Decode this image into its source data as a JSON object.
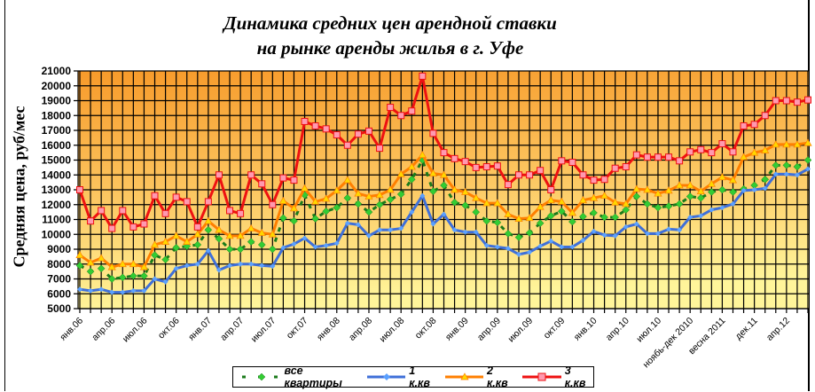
{
  "chart_data": {
    "type": "line",
    "title": [
      "Динамика средних цен арендной ставки",
      "на рынке аренды жилья в г. Уфе"
    ],
    "ylabel": "Средняя цена, руб/мес",
    "xlabel": "",
    "ylim": [
      5000,
      21000
    ],
    "ytick_step": 1000,
    "grid": true,
    "legend_position": "bottom",
    "categories": [
      "янв.06",
      "",
      "",
      "апр.06",
      "",
      "",
      "июл.06",
      "",
      "",
      "окт.06",
      "",
      "",
      "янв.07",
      "",
      "",
      "апр.07",
      "",
      "",
      "июл.07",
      "",
      "",
      "окт.07",
      "",
      "",
      "янв.08",
      "",
      "",
      "апр.08",
      "",
      "",
      "июл.08",
      "",
      "",
      "окт.08",
      "",
      "",
      "янв.09",
      "",
      "",
      "апр.09",
      "",
      "",
      "июл.09",
      "",
      "",
      "окт.09",
      "",
      "",
      "янв.10",
      "",
      "",
      "апр.10",
      "",
      "",
      "июл.10",
      "",
      "",
      "ноябь-дек 2010",
      "",
      "",
      "весна 2011",
      "",
      "",
      "дек.11",
      "",
      "",
      "апр.12",
      "",
      ""
    ],
    "series": [
      {
        "name": "все квартиры",
        "color": "#1a7a1a",
        "marker_color": "#33cc33",
        "values": [
          7900,
          7500,
          7700,
          7000,
          7100,
          7200,
          7200,
          8600,
          8300,
          9100,
          9200,
          9300,
          10300,
          9700,
          9000,
          9000,
          9500,
          9300,
          9000,
          11100,
          10900,
          12650,
          11050,
          11550,
          11800,
          12450,
          12050,
          11500,
          12000,
          12350,
          12700,
          13700,
          15000,
          12900,
          13300,
          12150,
          11950,
          11500,
          10900,
          10800,
          10050,
          9800,
          10100,
          10750,
          11250,
          11550,
          10850,
          11200,
          11450,
          11150,
          11150,
          11650,
          12550,
          12050,
          11800,
          11900,
          12050,
          12550,
          12450,
          12850,
          13000,
          12850,
          13050,
          13300,
          13700,
          14650,
          14650,
          14550,
          15000
        ]
      },
      {
        "name": "1 к.кв",
        "color": "#3f6fd8",
        "marker_color": "#5aa0ff",
        "values": [
          6300,
          6200,
          6300,
          6100,
          6100,
          6200,
          6200,
          7000,
          6800,
          7700,
          7900,
          8000,
          8900,
          7600,
          7900,
          8000,
          8000,
          7900,
          7850,
          9100,
          9350,
          9750,
          9150,
          9250,
          9400,
          10750,
          10650,
          9900,
          10300,
          10300,
          10400,
          11500,
          12600,
          10700,
          11350,
          10300,
          10150,
          10150,
          9250,
          9150,
          9050,
          8650,
          8800,
          9200,
          9550,
          9150,
          9150,
          9600,
          10200,
          9950,
          9900,
          10500,
          10700,
          10050,
          10050,
          10350,
          10300,
          11150,
          11250,
          11650,
          11800,
          12050,
          12950,
          13000,
          13100,
          14050,
          14050,
          14000,
          14400
        ]
      },
      {
        "name": "2 к.кв",
        "color": "#ff7f00",
        "marker_color": "#ffd700",
        "values": [
          8600,
          8100,
          8400,
          7800,
          8000,
          8000,
          7800,
          9300,
          9500,
          9900,
          9500,
          10000,
          10900,
          10300,
          9900,
          9900,
          10400,
          10100,
          10000,
          12250,
          11750,
          13100,
          12200,
          12400,
          12950,
          13650,
          12750,
          12550,
          12650,
          13000,
          14050,
          14550,
          15350,
          14100,
          14000,
          13000,
          12850,
          12450,
          12100,
          12100,
          11350,
          11050,
          11100,
          11850,
          12300,
          12200,
          11450,
          12300,
          12450,
          12600,
          12150,
          12050,
          13050,
          13000,
          12750,
          12950,
          13300,
          13300,
          12900,
          13400,
          13850,
          13650,
          15200,
          15500,
          15650,
          16050,
          16050,
          16050,
          16150
        ]
      },
      {
        "name": "3 к.кв",
        "color": "#ee1111",
        "marker_color": "#ff99b0",
        "values": [
          13000,
          10900,
          11600,
          10400,
          11600,
          10500,
          10700,
          12600,
          11400,
          12500,
          12200,
          10500,
          12200,
          14000,
          11600,
          11400,
          14000,
          13400,
          12000,
          13800,
          13650,
          17600,
          17300,
          17100,
          16700,
          16000,
          16750,
          16950,
          15800,
          18550,
          18000,
          18300,
          20650,
          16800,
          15500,
          15100,
          14900,
          14500,
          14550,
          14600,
          13350,
          14000,
          14000,
          14300,
          13000,
          14950,
          14850,
          14000,
          13650,
          13700,
          14450,
          14550,
          15350,
          15200,
          15200,
          15200,
          14950,
          15550,
          15700,
          15500,
          16100,
          15550,
          17300,
          17400,
          18000,
          19000,
          19000,
          18900,
          19050
        ]
      }
    ]
  }
}
